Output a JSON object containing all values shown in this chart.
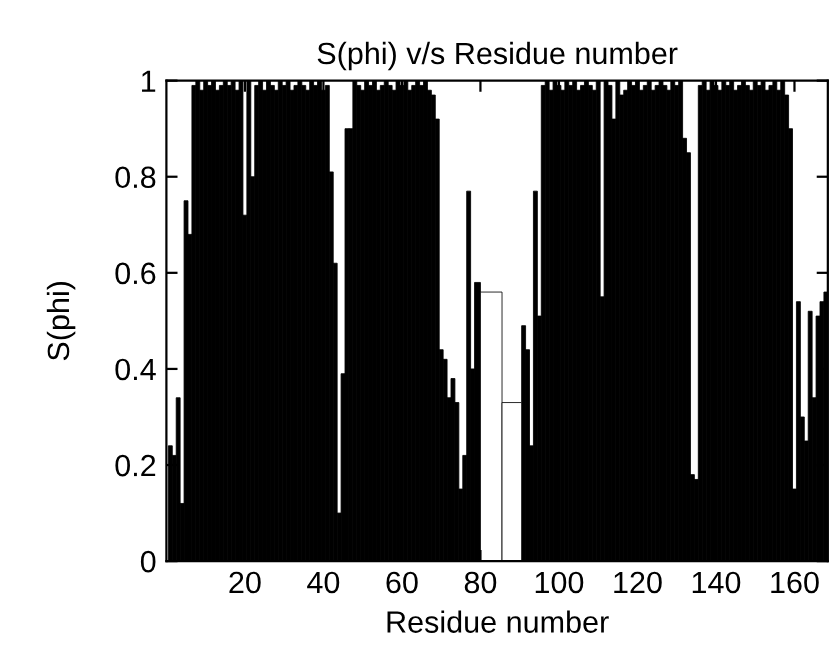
{
  "chart_data": {
    "type": "bar",
    "title": "S(phi) v/s Residue number",
    "xlabel": "Residue number",
    "ylabel": "S(phi)",
    "xlim": [
      0,
      168.5
    ],
    "xticks": [
      20,
      40,
      60,
      80,
      100,
      120,
      140,
      160
    ],
    "ylim": [
      0,
      1
    ],
    "yticks": [
      0,
      {
        "value": 0.2,
        "label": "0.2"
      },
      {
        "value": 0.4,
        "label": "0.4"
      },
      {
        "value": 0.6,
        "label": "0.6"
      },
      {
        "value": 0.8,
        "label": "0.8"
      },
      1
    ],
    "grid": false,
    "legend": false,
    "series": [
      {
        "color": "#000000",
        "x": [
          1,
          2,
          3,
          4,
          5,
          6,
          7,
          8,
          9,
          10,
          11,
          12,
          13,
          14,
          15,
          16,
          17,
          18,
          19,
          20,
          21,
          22,
          23,
          24,
          25,
          26,
          27,
          28,
          29,
          30,
          31,
          32,
          33,
          34,
          35,
          36,
          37,
          38,
          39,
          40,
          41,
          42,
          43,
          44,
          45,
          46,
          47,
          48,
          49,
          50,
          51,
          52,
          53,
          54,
          55,
          56,
          57,
          58,
          59,
          60,
          61,
          62,
          63,
          64,
          65,
          66,
          67,
          68,
          69,
          70,
          71,
          72,
          73,
          74,
          75,
          76,
          77,
          78,
          79,
          91,
          92,
          93,
          94,
          95,
          96,
          97,
          98,
          99,
          100,
          101,
          102,
          103,
          104,
          105,
          106,
          107,
          108,
          109,
          110,
          111,
          112,
          113,
          114,
          115,
          116,
          117,
          118,
          119,
          120,
          121,
          122,
          123,
          124,
          125,
          126,
          127,
          128,
          129,
          130,
          131,
          132,
          133,
          134,
          135,
          136,
          137,
          138,
          139,
          140,
          141,
          142,
          143,
          144,
          145,
          146,
          147,
          148,
          149,
          150,
          151,
          152,
          153,
          154,
          155,
          156,
          157,
          158,
          159,
          160,
          161,
          162,
          163,
          164,
          165,
          166,
          167,
          168
        ],
        "values": [
          0.24,
          0.22,
          0.34,
          0.12,
          0.75,
          0.68,
          0.99,
          1,
          0.98,
          1,
          0.99,
          1,
          0.98,
          0.99,
          1,
          0.99,
          1,
          0.98,
          1,
          0.72,
          1,
          0.8,
          0.99,
          1,
          0.98,
          1,
          0.99,
          0.98,
          1,
          0.99,
          1,
          0.98,
          0.99,
          1,
          0.99,
          0.98,
          1,
          0.99,
          1,
          0.98,
          0.99,
          0.81,
          0.62,
          0.1,
          0.39,
          0.9,
          0.9,
          1,
          0.99,
          0.98,
          1,
          0.99,
          1,
          0.98,
          0.99,
          1,
          0.99,
          0.98,
          1,
          0.99,
          1,
          0.98,
          0.99,
          1,
          0.99,
          1,
          0.98,
          0.97,
          0.92,
          0.44,
          0.42,
          0.34,
          0.38,
          0.33,
          0.15,
          0.22,
          0.77,
          0.4,
          0.58,
          0.49,
          0.44,
          0.24,
          0.77,
          0.51,
          0.99,
          1,
          0.98,
          1,
          0.99,
          0.98,
          1,
          0.99,
          1,
          0.98,
          0.99,
          1,
          0.99,
          0.98,
          1,
          0.55,
          1,
          0.99,
          0.92,
          1,
          0.97,
          0.98,
          1,
          0.99,
          1,
          0.98,
          0.99,
          1,
          0.98,
          0.99,
          1,
          0.99,
          0.98,
          1,
          0.99,
          1,
          0.88,
          0.85,
          0.18,
          0.17,
          0.99,
          1,
          0.98,
          1,
          0.99,
          0.98,
          1,
          0.99,
          1,
          0.98,
          0.99,
          1,
          0.99,
          0.98,
          1,
          0.99,
          1,
          0.98,
          0.99,
          1,
          0.98,
          1,
          0.97,
          0.9,
          0.15,
          0.54,
          0.3,
          0.25,
          0.52,
          0.34,
          0.51,
          0.54,
          0.56
        ]
      },
      {
        "color": "#ffffff",
        "x": [
          81,
          90
        ],
        "values": [
          0.56,
          0.33
        ]
      }
    ]
  }
}
